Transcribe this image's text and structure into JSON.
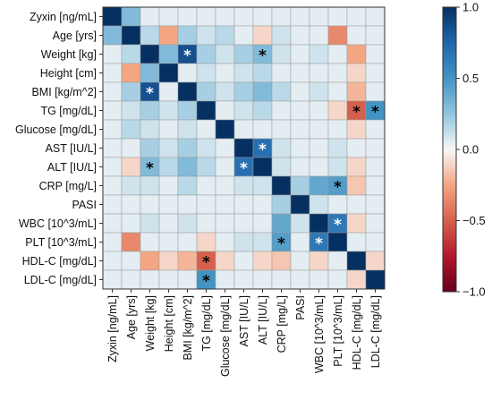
{
  "chart_data": {
    "type": "heatmap",
    "variables": [
      "Zyxin [ng/mL]",
      "Age [yrs]",
      "Weight [kg]",
      "Height [cm]",
      "BMI [kg/m^2]",
      "TG [mg/dL]",
      "Glucose [mg/dL]",
      "AST [IU/L]",
      "ALT [IU/L]",
      "CRP [mg/L]",
      "PASI",
      "WBC [10^3/mL]",
      "PLT [10^3/mL]",
      "HDL-C [mg/dL]",
      "LDL-C [mg/dL]"
    ],
    "colorbar": {
      "min": -1.0,
      "max": 1.0,
      "ticks": [
        "1.0",
        "0.5",
        "0.0",
        "−0.5",
        "−1.0"
      ],
      "tick_values": [
        1.0,
        0.5,
        0.0,
        -0.5,
        -1.0
      ]
    },
    "colors": {
      "positive": "#053061",
      "neutral": "#f7f7f7",
      "negative": "#67001f"
    },
    "matrix": [
      [
        1.0,
        0.3,
        0.05,
        0.05,
        0.05,
        0.05,
        0.05,
        0.05,
        0.05,
        0.05,
        0.05,
        0.05,
        0.05,
        0.05,
        0.05
      ],
      [
        0.3,
        1.0,
        0.15,
        -0.25,
        0.2,
        0.1,
        0.15,
        0.05,
        -0.1,
        0.1,
        0.05,
        0.05,
        -0.35,
        0.05,
        0.05
      ],
      [
        0.05,
        0.15,
        1.0,
        0.3,
        0.85,
        0.2,
        0.1,
        0.2,
        0.3,
        0.1,
        0.05,
        0.1,
        0.05,
        -0.25,
        0.05
      ],
      [
        0.05,
        -0.25,
        0.3,
        1.0,
        0.05,
        0.1,
        0.05,
        0.1,
        0.15,
        0.05,
        0.05,
        0.05,
        0.05,
        -0.1,
        0.05
      ],
      [
        0.05,
        0.2,
        0.85,
        0.05,
        1.0,
        0.2,
        0.1,
        0.2,
        0.3,
        0.15,
        0.05,
        0.1,
        0.05,
        -0.2,
        0.05
      ],
      [
        0.05,
        0.1,
        0.2,
        0.1,
        0.2,
        1.0,
        0.05,
        0.1,
        0.15,
        0.05,
        0.05,
        0.05,
        -0.1,
        -0.5,
        0.5
      ],
      [
        0.05,
        0.15,
        0.1,
        0.05,
        0.1,
        0.05,
        1.0,
        0.05,
        0.05,
        0.05,
        0.05,
        0.05,
        0.05,
        -0.1,
        0.05
      ],
      [
        0.05,
        0.05,
        0.2,
        0.1,
        0.2,
        0.1,
        0.05,
        1.0,
        0.7,
        0.1,
        0.05,
        0.05,
        0.1,
        0.05,
        0.05
      ],
      [
        0.05,
        -0.1,
        0.3,
        0.15,
        0.3,
        0.15,
        0.05,
        0.7,
        1.0,
        0.1,
        0.05,
        0.05,
        0.1,
        -0.1,
        0.05
      ],
      [
        0.05,
        0.1,
        0.1,
        0.05,
        0.15,
        0.05,
        0.05,
        0.1,
        0.1,
        1.0,
        0.2,
        0.4,
        0.45,
        -0.15,
        0.05
      ],
      [
        0.05,
        0.05,
        0.05,
        0.05,
        0.05,
        0.05,
        0.05,
        0.05,
        0.05,
        0.2,
        1.0,
        0.1,
        0.05,
        0.05,
        0.05
      ],
      [
        0.05,
        0.05,
        0.1,
        0.05,
        0.1,
        0.05,
        0.05,
        0.05,
        0.05,
        0.4,
        0.1,
        1.0,
        0.65,
        -0.1,
        0.05
      ],
      [
        0.05,
        -0.35,
        0.05,
        0.05,
        0.05,
        -0.1,
        0.05,
        0.1,
        0.1,
        0.45,
        0.05,
        0.65,
        1.0,
        0.05,
        0.05
      ],
      [
        0.05,
        0.05,
        -0.25,
        -0.1,
        -0.2,
        -0.5,
        -0.1,
        0.05,
        -0.1,
        -0.15,
        0.05,
        -0.1,
        0.05,
        1.0,
        -0.1
      ],
      [
        0.05,
        0.05,
        0.05,
        0.05,
        0.05,
        0.5,
        0.05,
        0.05,
        0.05,
        0.05,
        0.05,
        0.05,
        0.05,
        -0.1,
        1.0
      ]
    ],
    "significant_pairs": [
      [
        2,
        4
      ],
      [
        2,
        8
      ],
      [
        5,
        13
      ],
      [
        5,
        14
      ],
      [
        7,
        8
      ],
      [
        9,
        12
      ],
      [
        11,
        12
      ]
    ],
    "significance_marker": "*"
  }
}
